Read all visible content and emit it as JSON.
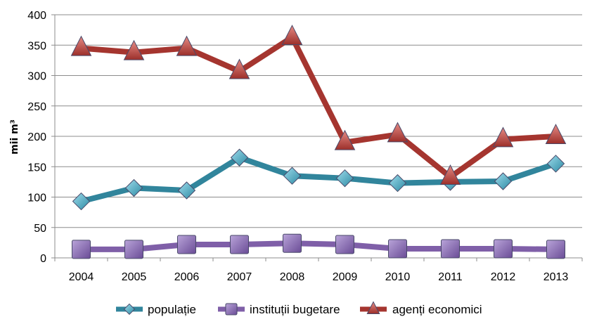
{
  "chart_data": {
    "type": "line",
    "categories": [
      "2004",
      "2005",
      "2006",
      "2007",
      "2008",
      "2009",
      "2010",
      "2011",
      "2012",
      "2013"
    ],
    "ylabel": "mii m³",
    "ylim": [
      0,
      400
    ],
    "yticks": [
      0,
      50,
      100,
      150,
      200,
      250,
      300,
      350,
      400
    ],
    "grid": true,
    "legend_position": "bottom",
    "series": [
      {
        "name": "populație",
        "color": "#31859c",
        "marker": "diamond",
        "values": [
          93,
          115,
          111,
          165,
          135,
          131,
          123,
          125,
          126,
          155
        ]
      },
      {
        "name": "instituții bugetare",
        "color": "#7f5fa8",
        "marker": "square",
        "values": [
          14,
          14,
          22,
          22,
          24,
          22,
          15,
          15,
          15,
          14
        ]
      },
      {
        "name": "agenți economici",
        "color": "#a5352f",
        "marker": "triangle",
        "values": [
          345,
          338,
          345,
          307,
          363,
          190,
          203,
          133,
          195,
          200
        ]
      }
    ]
  }
}
